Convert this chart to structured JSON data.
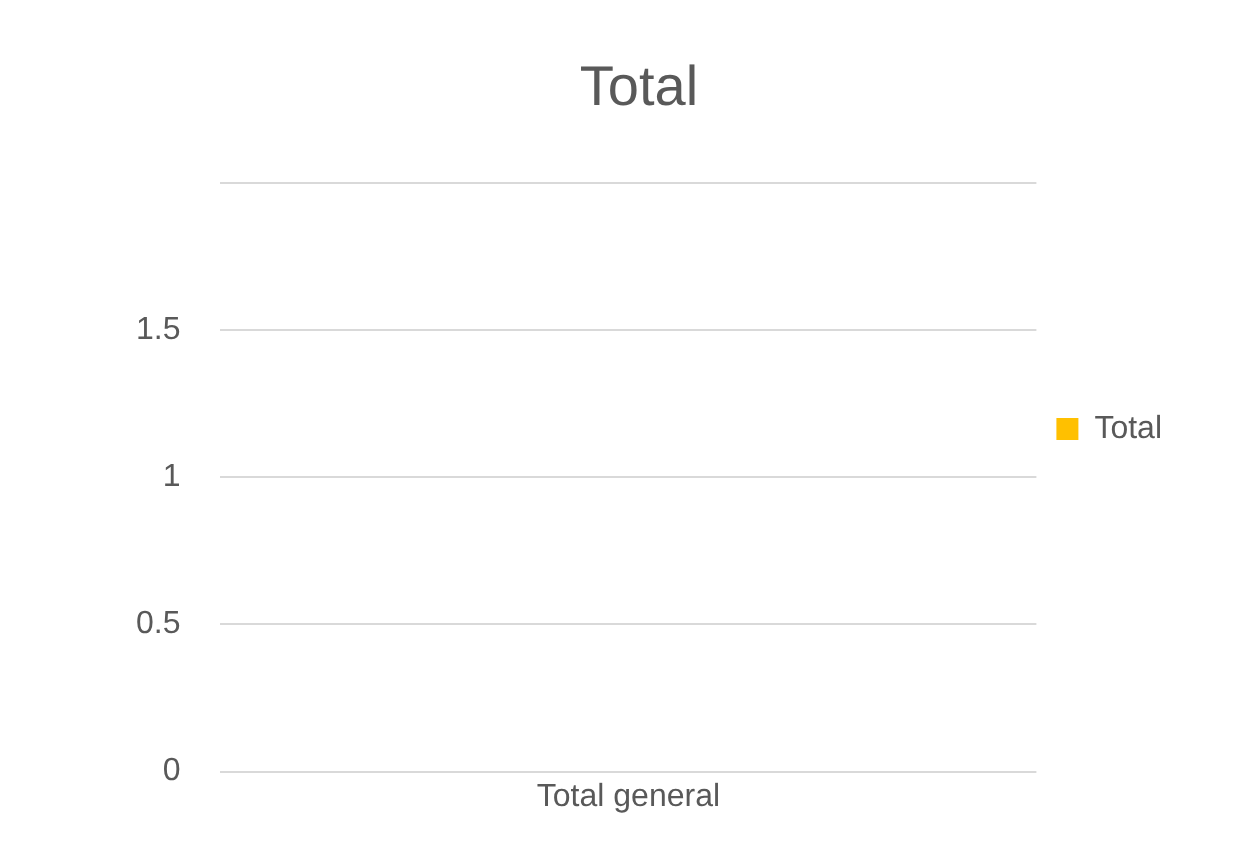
{
  "chart_data": {
    "type": "bar",
    "title": "Total",
    "categories": [
      "Total general"
    ],
    "series": [
      {
        "name": "Total",
        "color": "#ffc000",
        "values": [
          0
        ]
      }
    ],
    "ylim": [
      0,
      2
    ],
    "yticks": [
      0,
      0.5,
      1,
      1.5,
      {
        "value": 2,
        "label": null
      }
    ],
    "grid": "y",
    "legend": "right"
  }
}
